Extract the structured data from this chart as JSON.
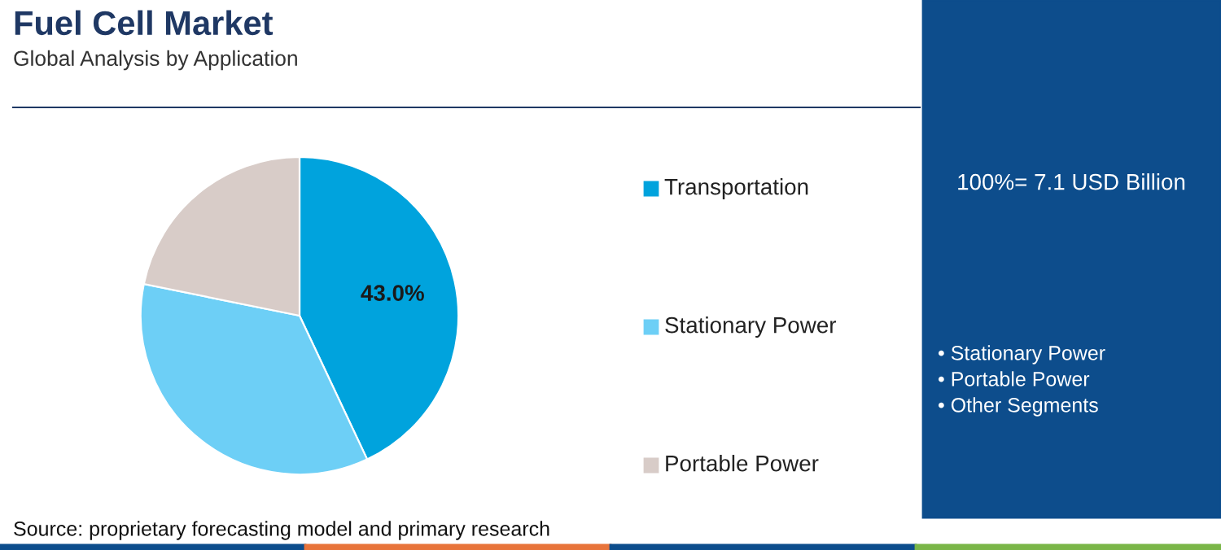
{
  "chart_data": {
    "type": "pie",
    "title": "Fuel Cell Market",
    "subtitle": "Global Analysis by Application",
    "categories": [
      "Transportation",
      "Stationary Power",
      "Portable Power"
    ],
    "values": [
      43.0,
      35.2,
      21.8
    ],
    "colors": [
      "#00a3dd",
      "#6dcff6",
      "#d8ccc8"
    ],
    "value_labels": [
      "43.0%",
      null,
      null
    ],
    "legend": "right",
    "annotations": [
      "100%= 7.1 USD Billion",
      "• Stationary Power",
      "• Portable Power",
      "• Other Segments",
      "Source: proprietary forecasting model and primary research"
    ]
  }
}
